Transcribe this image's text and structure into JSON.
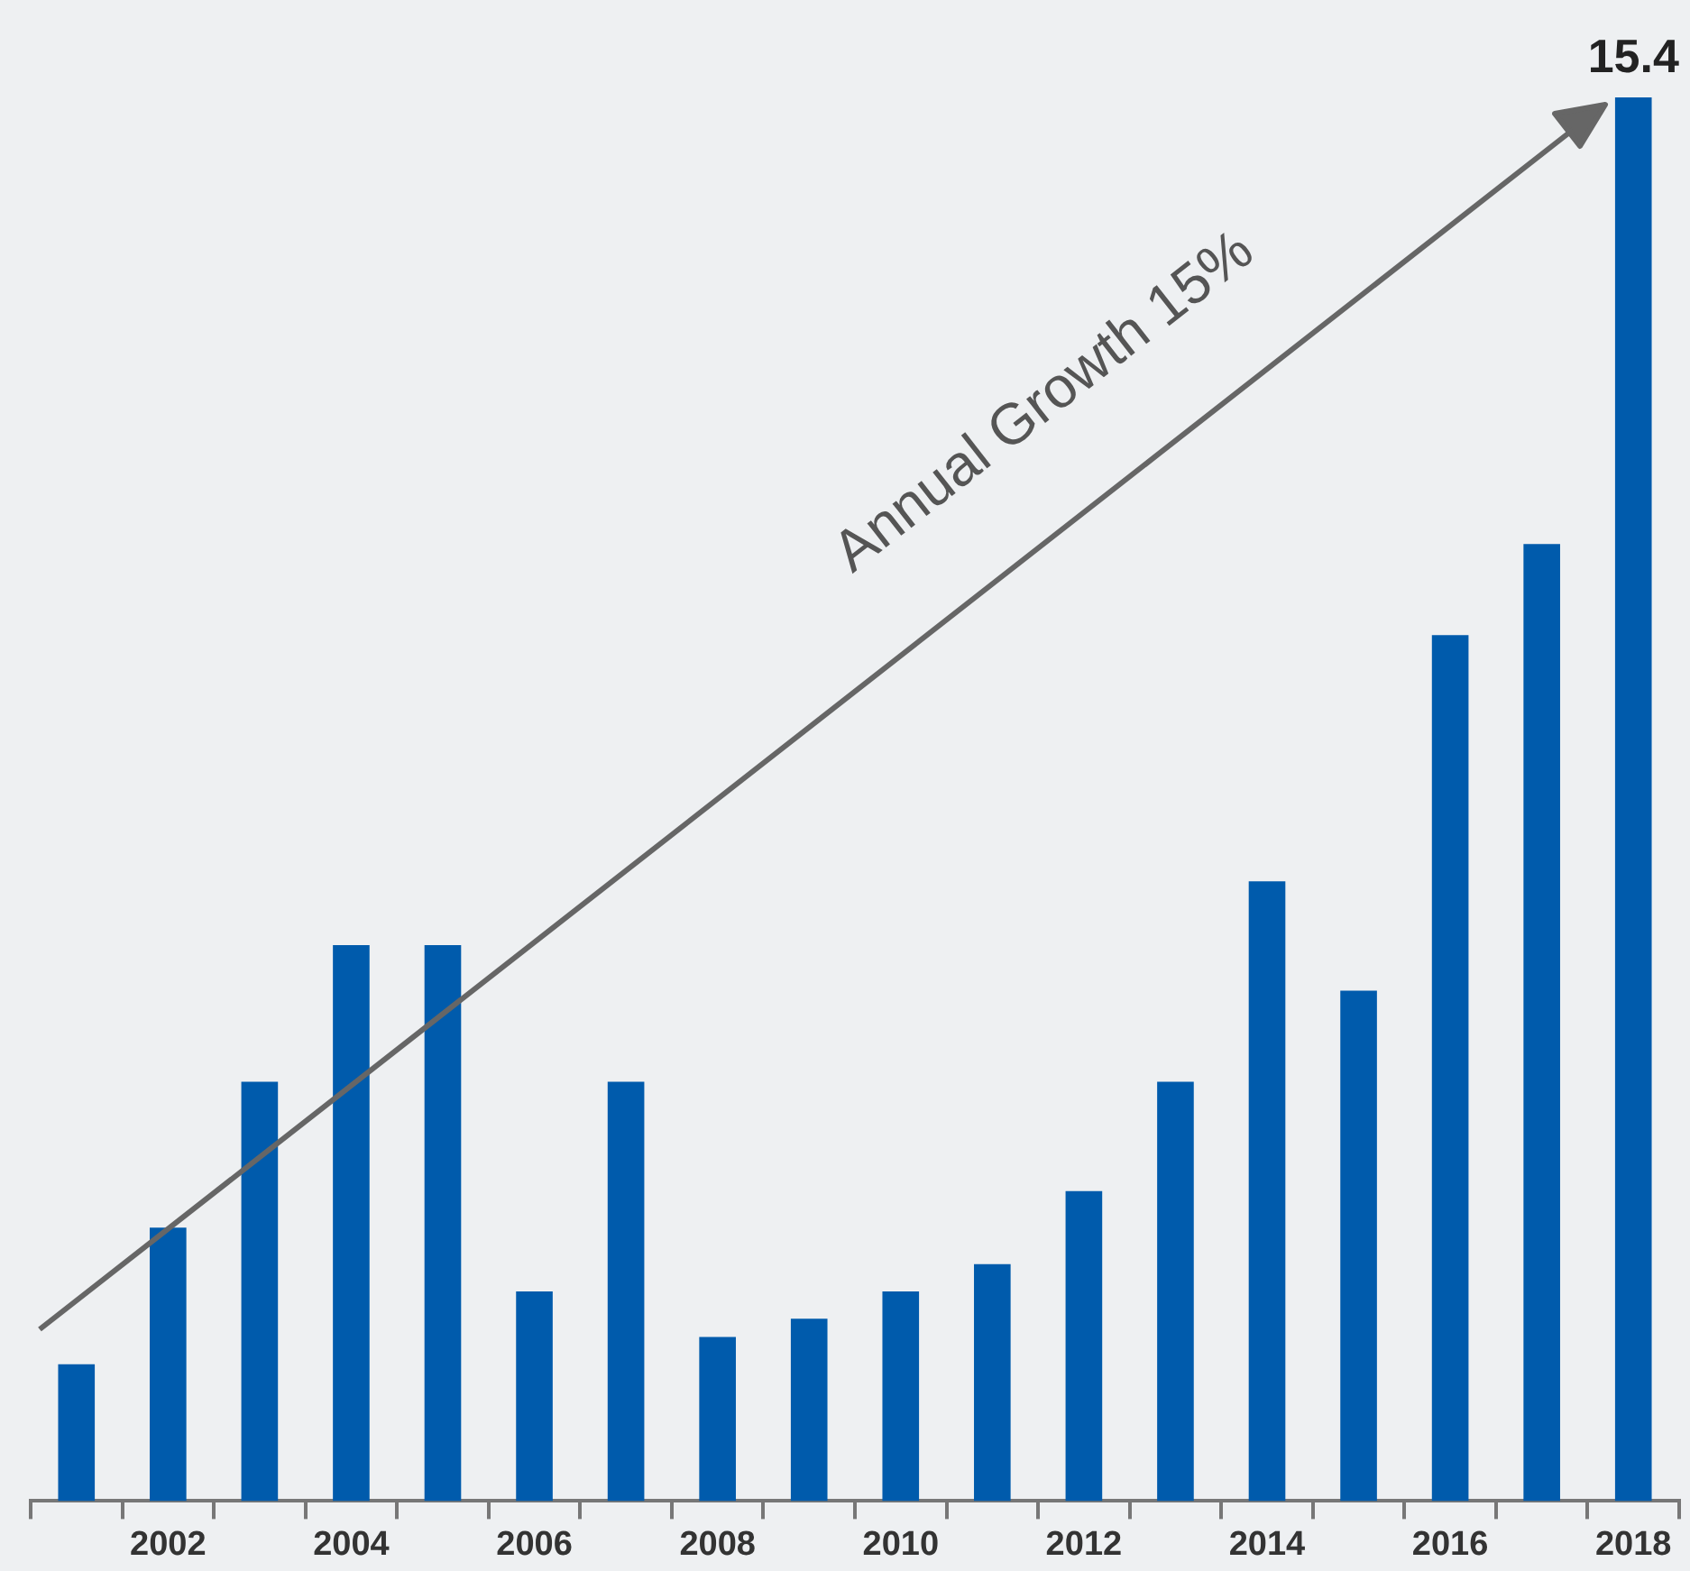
{
  "chart_data": {
    "type": "bar",
    "categories": [
      null,
      "2002",
      null,
      "2004",
      null,
      "2006",
      null,
      "2008",
      null,
      "2010",
      null,
      "2012",
      null,
      "2014",
      null,
      "2016",
      null,
      "2018"
    ],
    "values": [
      1.5,
      3.0,
      4.6,
      6.1,
      6.1,
      2.3,
      4.6,
      1.8,
      2.0,
      2.3,
      2.6,
      3.4,
      4.6,
      6.8,
      5.6,
      9.5,
      10.5,
      15.4
    ],
    "value_labels": [
      null,
      null,
      null,
      null,
      null,
      null,
      null,
      null,
      null,
      null,
      null,
      null,
      null,
      null,
      null,
      null,
      null,
      "15.4"
    ],
    "color": "#005bac",
    "annotations": [
      "Annual Growth 15%"
    ],
    "grid": false,
    "legend": false,
    "tick_labels": "x"
  }
}
